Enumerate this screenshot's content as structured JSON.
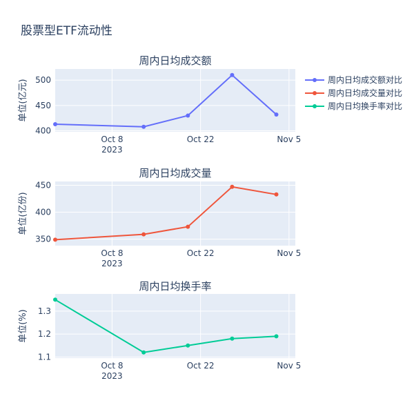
{
  "title": "股票型ETF流动性",
  "colors": {
    "plot_bg": "#e5ecf6",
    "grid": "#ffffff",
    "text": "#2a3f5f",
    "series": [
      "#636efa",
      "#ef553b",
      "#00cc96"
    ]
  },
  "legend": {
    "position": "top-right",
    "items": [
      "周内日均成交额对比",
      "周内日均成交量对比",
      "周内日均换手率对比"
    ]
  },
  "x_axis": {
    "type": "date",
    "range": [
      "2023-09-29",
      "2023-11-06"
    ],
    "ticks": [
      {
        "date": "2023-10-08",
        "label": "Oct 8",
        "sublabel": "2023"
      },
      {
        "date": "2023-10-22",
        "label": "Oct 22",
        "sublabel": ""
      },
      {
        "date": "2023-11-05",
        "label": "Nov 5",
        "sublabel": ""
      }
    ]
  },
  "chart_data": [
    {
      "type": "line",
      "title": "周内日均成交额",
      "ylabel": "单位(亿元)",
      "series_name": "周内日均成交额对比",
      "x": [
        "2023-09-29",
        "2023-10-13",
        "2023-10-20",
        "2023-10-27",
        "2023-11-03"
      ],
      "values": [
        413,
        408,
        430,
        510,
        432
      ],
      "ylim": [
        398,
        522
      ],
      "yticks": [
        {
          "value": 400,
          "label": "400"
        },
        {
          "value": 450,
          "label": "450"
        },
        {
          "value": 500,
          "label": "500"
        }
      ]
    },
    {
      "type": "line",
      "title": "周内日均成交量",
      "ylabel": "单位(亿份)",
      "series_name": "周内日均成交量对比",
      "x": [
        "2023-09-29",
        "2023-10-13",
        "2023-10-20",
        "2023-10-27",
        "2023-11-03"
      ],
      "values": [
        349,
        359,
        373,
        447,
        433
      ],
      "ylim": [
        338,
        457
      ],
      "yticks": [
        {
          "value": 350,
          "label": "350"
        },
        {
          "value": 400,
          "label": "400"
        },
        {
          "value": 450,
          "label": "450"
        }
      ]
    },
    {
      "type": "line",
      "title": "周内日均换手率",
      "ylabel": "单位(%)",
      "series_name": "周内日均换手率对比",
      "x": [
        "2023-09-29",
        "2023-10-13",
        "2023-10-20",
        "2023-10-27",
        "2023-11-03"
      ],
      "values": [
        1.35,
        1.12,
        1.15,
        1.18,
        1.19
      ],
      "ylim": [
        1.095,
        1.375
      ],
      "yticks": [
        {
          "value": 1.1,
          "label": "1.1"
        },
        {
          "value": 1.2,
          "label": "1.2"
        },
        {
          "value": 1.3,
          "label": "1.3"
        }
      ]
    }
  ]
}
